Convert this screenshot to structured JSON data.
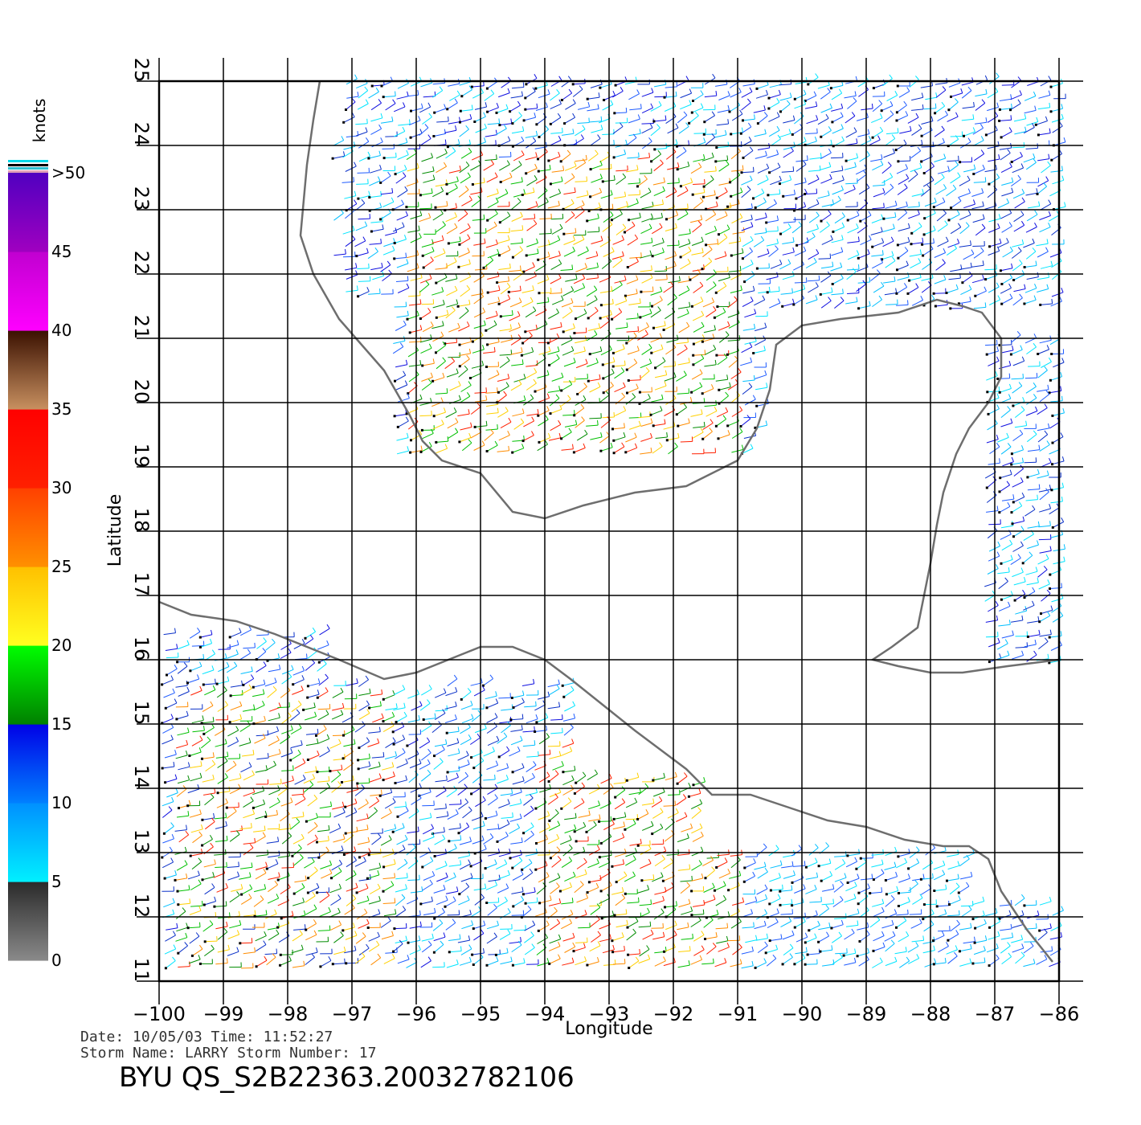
{
  "map": {
    "lon_range": [
      -100,
      -86
    ],
    "lat_range": [
      11,
      25
    ],
    "x_ticks": [
      -100,
      -99,
      -98,
      -97,
      -96,
      -95,
      -94,
      -93,
      -92,
      -91,
      -90,
      -89,
      -88,
      -87,
      -86
    ],
    "y_ticks": [
      11,
      12,
      13,
      14,
      15,
      16,
      17,
      18,
      19,
      20,
      21,
      22,
      23,
      24,
      25
    ],
    "x_tick_labels": [
      "−100",
      "−99",
      "−98",
      "−97",
      "−96",
      "−95",
      "−94",
      "−93",
      "−92",
      "−91",
      "−90",
      "−89",
      "−88",
      "−87",
      "−86"
    ],
    "y_tick_labels": [
      "11",
      "12",
      "13",
      "14",
      "15",
      "16",
      "17",
      "18",
      "19",
      "20",
      "21",
      "22",
      "23",
      "24",
      "25"
    ],
    "xlabel": "Longitude",
    "ylabel": "Latitude",
    "grid": true,
    "coastline_color": "#6e6e6e"
  },
  "colorbar": {
    "unit": "knots",
    "labels": [
      "0",
      "5",
      "10",
      "15",
      "20",
      "25",
      "30",
      "35",
      "40",
      "45",
      ">50"
    ],
    "bands": [
      {
        "from": 0,
        "to": 5,
        "colors": [
          "#8a8a8a",
          "#2a2a2a"
        ]
      },
      {
        "from": 5,
        "to": 10,
        "colors": [
          "#00f0ff",
          "#0090ff"
        ]
      },
      {
        "from": 10,
        "to": 15,
        "colors": [
          "#0080ff",
          "#0000e6"
        ]
      },
      {
        "from": 15,
        "to": 20,
        "colors": [
          "#008000",
          "#00ff00"
        ]
      },
      {
        "from": 20,
        "to": 25,
        "colors": [
          "#ffff20",
          "#ffc000"
        ]
      },
      {
        "from": 25,
        "to": 30,
        "colors": [
          "#ff9000",
          "#ff4000"
        ]
      },
      {
        "from": 30,
        "to": 35,
        "colors": [
          "#ff2000",
          "#ff0000"
        ]
      },
      {
        "from": 35,
        "to": 40,
        "colors": [
          "#c89060",
          "#3a1000"
        ]
      },
      {
        "from": 40,
        "to": 45,
        "colors": [
          "#ff00ff",
          "#c000d0"
        ]
      },
      {
        "from": 45,
        "to": 50,
        "colors": [
          "#a000c0",
          "#5000c0"
        ]
      }
    ]
  },
  "info": {
    "date_line": "Date: 10/05/03   Time: 11:52:27",
    "storm_line": "Storm  Name: LARRY    Storm  Number: 17",
    "file_title": "BYU  QS_S2B22363.20032782106"
  },
  "chart_data": {
    "type": "scatter",
    "title": "",
    "xlabel": "Longitude",
    "ylabel": "Latitude",
    "xlim": [
      -100,
      -86
    ],
    "ylim": [
      11,
      25
    ],
    "encoding": "wind barbs colored by speed (knots)",
    "coastlines": [
      {
        "name": "",
        "points": [
          [
            -97.5,
            25.0
          ],
          [
            -97.6,
            24.4
          ],
          [
            -97.7,
            23.7
          ],
          [
            -97.8,
            22.6
          ],
          [
            -97.6,
            22.0
          ],
          [
            -97.2,
            21.3
          ],
          [
            -96.5,
            20.5
          ],
          [
            -96.1,
            19.8
          ],
          [
            -95.9,
            19.4
          ],
          [
            -95.6,
            19.1
          ],
          [
            -95.0,
            18.9
          ],
          [
            -94.5,
            18.3
          ],
          [
            -94.0,
            18.2
          ],
          [
            -93.4,
            18.4
          ],
          [
            -92.6,
            18.6
          ],
          [
            -91.8,
            18.7
          ],
          [
            -91.4,
            18.9
          ],
          [
            -91.0,
            19.1
          ],
          [
            -90.7,
            19.6
          ],
          [
            -90.5,
            20.2
          ],
          [
            -90.4,
            20.9
          ],
          [
            -90.0,
            21.2
          ],
          [
            -89.4,
            21.3
          ],
          [
            -88.5,
            21.4
          ],
          [
            -87.9,
            21.6
          ],
          [
            -87.5,
            21.5
          ],
          [
            -87.2,
            21.4
          ],
          [
            -86.9,
            21.0
          ],
          [
            -86.9,
            20.4
          ],
          [
            -87.1,
            20.0
          ],
          [
            -87.4,
            19.6
          ],
          [
            -87.6,
            19.2
          ],
          [
            -87.8,
            18.6
          ],
          [
            -87.9,
            18.1
          ],
          [
            -88.0,
            17.5
          ],
          [
            -88.1,
            17.0
          ],
          [
            -88.2,
            16.5
          ],
          [
            -88.6,
            16.2
          ],
          [
            -88.9,
            16.0
          ],
          [
            -88.5,
            15.9
          ],
          [
            -88.0,
            15.8
          ],
          [
            -87.5,
            15.8
          ],
          [
            -86.8,
            15.9
          ],
          [
            -86.0,
            16.0
          ]
        ]
      },
      {
        "name": "",
        "points": [
          [
            -100.0,
            16.9
          ],
          [
            -99.5,
            16.7
          ],
          [
            -98.8,
            16.6
          ],
          [
            -98.2,
            16.4
          ],
          [
            -97.7,
            16.2
          ],
          [
            -97.2,
            16.0
          ],
          [
            -96.5,
            15.7
          ],
          [
            -96.0,
            15.8
          ],
          [
            -95.5,
            16.0
          ],
          [
            -95.0,
            16.2
          ],
          [
            -94.5,
            16.2
          ],
          [
            -94.0,
            16.0
          ],
          [
            -93.6,
            15.7
          ],
          [
            -93.1,
            15.3
          ],
          [
            -92.6,
            14.9
          ],
          [
            -92.2,
            14.6
          ],
          [
            -91.8,
            14.3
          ],
          [
            -91.4,
            13.9
          ],
          [
            -90.8,
            13.9
          ],
          [
            -90.2,
            13.7
          ],
          [
            -89.6,
            13.5
          ],
          [
            -89.0,
            13.4
          ],
          [
            -88.4,
            13.2
          ],
          [
            -87.8,
            13.1
          ],
          [
            -87.4,
            13.1
          ],
          [
            -87.1,
            12.9
          ],
          [
            -86.9,
            12.4
          ],
          [
            -86.5,
            11.8
          ],
          [
            -86.1,
            11.3
          ]
        ]
      }
    ]
  }
}
